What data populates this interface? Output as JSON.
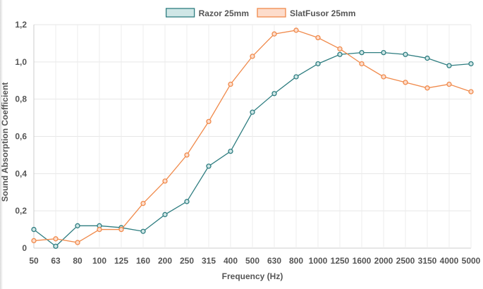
{
  "chart_data": {
    "type": "line",
    "title": "",
    "xlabel": "Frequency (Hz)",
    "ylabel": "Sound Absorption Coefficient",
    "categories": [
      "50",
      "63",
      "80",
      "100",
      "125",
      "160",
      "200",
      "250",
      "315",
      "400",
      "500",
      "630",
      "800",
      "1000",
      "1250",
      "1600",
      "2000",
      "2500",
      "3150",
      "4000",
      "5000"
    ],
    "ylim": [
      0,
      1.2
    ],
    "y_ticks": [
      "0",
      "0,2",
      "0,4",
      "0,6",
      "0,8",
      "1,0",
      "1,2"
    ],
    "grid": true,
    "legend_position": "top",
    "series": [
      {
        "name": "Razor 25mm",
        "color": "#2e7d80",
        "fill": "#cfe6e6",
        "values": [
          0.1,
          0.01,
          0.12,
          0.12,
          0.11,
          0.09,
          0.18,
          0.25,
          0.44,
          0.52,
          0.73,
          0.83,
          0.92,
          0.99,
          1.04,
          1.05,
          1.05,
          1.04,
          1.02,
          0.98,
          0.99
        ]
      },
      {
        "name": "SlatFusor 25mm",
        "color": "#f08a4b",
        "fill": "#fddccb",
        "values": [
          0.04,
          0.05,
          0.03,
          0.1,
          0.1,
          0.24,
          0.36,
          0.5,
          0.68,
          0.88,
          1.03,
          1.15,
          1.17,
          1.13,
          1.07,
          0.99,
          0.92,
          0.89,
          0.86,
          0.88,
          0.84
        ]
      }
    ]
  }
}
